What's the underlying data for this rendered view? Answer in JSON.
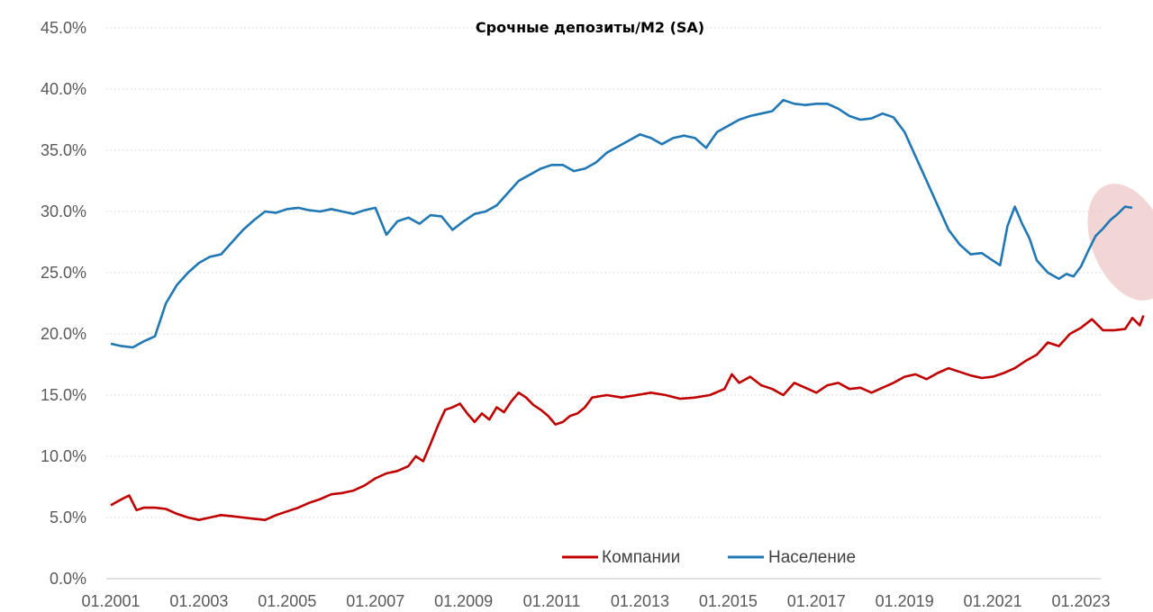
{
  "chart_data": {
    "type": "line",
    "title": "Срочные депозиты/M2 (SA)",
    "xlabel": "",
    "ylabel": "",
    "ylim": [
      0,
      45
    ],
    "y_tick_labels": [
      "0.0%",
      "5.0%",
      "10.0%",
      "15.0%",
      "20.0%",
      "25.0%",
      "30.0%",
      "35.0%",
      "40.0%",
      "45.0%"
    ],
    "x_tick_labels": [
      "01.2001",
      "01.2003",
      "01.2005",
      "01.2007",
      "01.2009",
      "01.2011",
      "01.2013",
      "01.2015",
      "01.2017",
      "01.2019",
      "01.2021",
      "01.2023"
    ],
    "x_range": [
      "2001-01",
      "2024-06"
    ],
    "grid": "horizontal dotted",
    "legend_position": "bottom",
    "highlight": {
      "shape": "ellipse",
      "x_range": [
        "2023-04",
        "2024-12"
      ],
      "y_range": [
        22.5,
        32.5
      ],
      "color": "#e8b4b4"
    },
    "series": [
      {
        "name": "Компании",
        "color": "#c00000",
        "points": [
          [
            "2001-01",
            6.0
          ],
          [
            "2001-04",
            6.5
          ],
          [
            "2001-06",
            6.8
          ],
          [
            "2001-08",
            5.6
          ],
          [
            "2001-10",
            5.8
          ],
          [
            "2002-01",
            5.8
          ],
          [
            "2002-04",
            5.7
          ],
          [
            "2002-07",
            5.3
          ],
          [
            "2002-10",
            5.0
          ],
          [
            "2003-01",
            4.8
          ],
          [
            "2003-04",
            5.0
          ],
          [
            "2003-07",
            5.2
          ],
          [
            "2003-10",
            5.1
          ],
          [
            "2004-01",
            5.0
          ],
          [
            "2004-04",
            4.9
          ],
          [
            "2004-07",
            4.8
          ],
          [
            "2004-10",
            5.2
          ],
          [
            "2005-01",
            5.5
          ],
          [
            "2005-04",
            5.8
          ],
          [
            "2005-07",
            6.2
          ],
          [
            "2005-10",
            6.5
          ],
          [
            "2006-01",
            6.9
          ],
          [
            "2006-04",
            7.0
          ],
          [
            "2006-07",
            7.2
          ],
          [
            "2006-10",
            7.6
          ],
          [
            "2007-01",
            8.2
          ],
          [
            "2007-04",
            8.6
          ],
          [
            "2007-07",
            8.8
          ],
          [
            "2007-10",
            9.2
          ],
          [
            "2007-12",
            10.0
          ],
          [
            "2008-02",
            9.6
          ],
          [
            "2008-04",
            11.0
          ],
          [
            "2008-06",
            12.5
          ],
          [
            "2008-08",
            13.8
          ],
          [
            "2008-10",
            14.0
          ],
          [
            "2008-12",
            14.3
          ],
          [
            "2009-02",
            13.5
          ],
          [
            "2009-04",
            12.8
          ],
          [
            "2009-06",
            13.5
          ],
          [
            "2009-08",
            13.0
          ],
          [
            "2009-10",
            14.0
          ],
          [
            "2009-12",
            13.6
          ],
          [
            "2010-02",
            14.5
          ],
          [
            "2010-04",
            15.2
          ],
          [
            "2010-06",
            14.8
          ],
          [
            "2010-08",
            14.2
          ],
          [
            "2010-10",
            13.8
          ],
          [
            "2010-12",
            13.3
          ],
          [
            "2011-02",
            12.6
          ],
          [
            "2011-04",
            12.8
          ],
          [
            "2011-06",
            13.3
          ],
          [
            "2011-08",
            13.5
          ],
          [
            "2011-10",
            14.0
          ],
          [
            "2011-12",
            14.8
          ],
          [
            "2012-04",
            15.0
          ],
          [
            "2012-08",
            14.8
          ],
          [
            "2012-12",
            15.0
          ],
          [
            "2013-04",
            15.2
          ],
          [
            "2013-08",
            15.0
          ],
          [
            "2013-12",
            14.7
          ],
          [
            "2014-04",
            14.8
          ],
          [
            "2014-08",
            15.0
          ],
          [
            "2014-12",
            15.5
          ],
          [
            "2015-02",
            16.7
          ],
          [
            "2015-04",
            16.0
          ],
          [
            "2015-07",
            16.5
          ],
          [
            "2015-10",
            15.8
          ],
          [
            "2016-01",
            15.5
          ],
          [
            "2016-04",
            15.0
          ],
          [
            "2016-07",
            16.0
          ],
          [
            "2016-10",
            15.6
          ],
          [
            "2017-01",
            15.2
          ],
          [
            "2017-04",
            15.8
          ],
          [
            "2017-07",
            16.0
          ],
          [
            "2017-10",
            15.5
          ],
          [
            "2018-01",
            15.6
          ],
          [
            "2018-04",
            15.2
          ],
          [
            "2018-07",
            15.6
          ],
          [
            "2018-10",
            16.0
          ],
          [
            "2019-01",
            16.5
          ],
          [
            "2019-04",
            16.7
          ],
          [
            "2019-07",
            16.3
          ],
          [
            "2019-10",
            16.8
          ],
          [
            "2020-01",
            17.2
          ],
          [
            "2020-04",
            16.9
          ],
          [
            "2020-07",
            16.6
          ],
          [
            "2020-10",
            16.4
          ],
          [
            "2021-01",
            16.5
          ],
          [
            "2021-04",
            16.8
          ],
          [
            "2021-07",
            17.2
          ],
          [
            "2021-10",
            17.8
          ],
          [
            "2022-01",
            18.3
          ],
          [
            "2022-04",
            19.3
          ],
          [
            "2022-07",
            19.0
          ],
          [
            "2022-10",
            20.0
          ],
          [
            "2023-01",
            20.5
          ],
          [
            "2023-04",
            21.2
          ],
          [
            "2023-07",
            20.3
          ],
          [
            "2023-10",
            20.3
          ],
          [
            "2024-01",
            20.4
          ],
          [
            "2024-03",
            21.3
          ],
          [
            "2024-05",
            20.7
          ],
          [
            "2024-06",
            21.5
          ]
        ]
      },
      {
        "name": "Население",
        "color": "#1f77b4",
        "points": [
          [
            "2001-01",
            19.2
          ],
          [
            "2001-04",
            19.0
          ],
          [
            "2001-07",
            18.9
          ],
          [
            "2001-10",
            19.4
          ],
          [
            "2002-01",
            19.8
          ],
          [
            "2002-04",
            22.5
          ],
          [
            "2002-07",
            24.0
          ],
          [
            "2002-10",
            25.0
          ],
          [
            "2003-01",
            25.8
          ],
          [
            "2003-04",
            26.3
          ],
          [
            "2003-07",
            26.5
          ],
          [
            "2003-10",
            27.5
          ],
          [
            "2004-01",
            28.5
          ],
          [
            "2004-04",
            29.3
          ],
          [
            "2004-07",
            30.0
          ],
          [
            "2004-10",
            29.9
          ],
          [
            "2005-01",
            30.2
          ],
          [
            "2005-04",
            30.3
          ],
          [
            "2005-07",
            30.1
          ],
          [
            "2005-10",
            30.0
          ],
          [
            "2006-01",
            30.2
          ],
          [
            "2006-04",
            30.0
          ],
          [
            "2006-07",
            29.8
          ],
          [
            "2006-10",
            30.1
          ],
          [
            "2007-01",
            30.3
          ],
          [
            "2007-04",
            28.1
          ],
          [
            "2007-07",
            29.2
          ],
          [
            "2007-10",
            29.5
          ],
          [
            "2008-01",
            29.0
          ],
          [
            "2008-04",
            29.7
          ],
          [
            "2008-07",
            29.6
          ],
          [
            "2008-10",
            28.5
          ],
          [
            "2009-01",
            29.2
          ],
          [
            "2009-04",
            29.8
          ],
          [
            "2009-07",
            30.0
          ],
          [
            "2009-10",
            30.5
          ],
          [
            "2010-01",
            31.5
          ],
          [
            "2010-04",
            32.5
          ],
          [
            "2010-07",
            33.0
          ],
          [
            "2010-10",
            33.5
          ],
          [
            "2011-01",
            33.8
          ],
          [
            "2011-04",
            33.8
          ],
          [
            "2011-07",
            33.3
          ],
          [
            "2011-10",
            33.5
          ],
          [
            "2012-01",
            34.0
          ],
          [
            "2012-04",
            34.8
          ],
          [
            "2012-07",
            35.3
          ],
          [
            "2012-10",
            35.8
          ],
          [
            "2013-01",
            36.3
          ],
          [
            "2013-04",
            36.0
          ],
          [
            "2013-07",
            35.5
          ],
          [
            "2013-10",
            36.0
          ],
          [
            "2014-01",
            36.2
          ],
          [
            "2014-04",
            36.0
          ],
          [
            "2014-07",
            35.2
          ],
          [
            "2014-10",
            36.5
          ],
          [
            "2015-01",
            37.0
          ],
          [
            "2015-04",
            37.5
          ],
          [
            "2015-07",
            37.8
          ],
          [
            "2015-10",
            38.0
          ],
          [
            "2016-01",
            38.2
          ],
          [
            "2016-04",
            39.1
          ],
          [
            "2016-07",
            38.8
          ],
          [
            "2016-10",
            38.7
          ],
          [
            "2017-01",
            38.8
          ],
          [
            "2017-04",
            38.8
          ],
          [
            "2017-07",
            38.4
          ],
          [
            "2017-10",
            37.8
          ],
          [
            "2018-01",
            37.5
          ],
          [
            "2018-04",
            37.6
          ],
          [
            "2018-07",
            38.0
          ],
          [
            "2018-10",
            37.7
          ],
          [
            "2019-01",
            36.5
          ],
          [
            "2019-04",
            34.5
          ],
          [
            "2019-07",
            32.5
          ],
          [
            "2019-10",
            30.5
          ],
          [
            "2020-01",
            28.5
          ],
          [
            "2020-04",
            27.3
          ],
          [
            "2020-07",
            26.5
          ],
          [
            "2020-10",
            26.6
          ],
          [
            "2021-01",
            26.0
          ],
          [
            "2021-03",
            25.6
          ],
          [
            "2021-05",
            28.8
          ],
          [
            "2021-07",
            30.4
          ],
          [
            "2021-09",
            29.0
          ],
          [
            "2021-11",
            27.8
          ],
          [
            "2022-01",
            26.0
          ],
          [
            "2022-04",
            25.0
          ],
          [
            "2022-07",
            24.5
          ],
          [
            "2022-09",
            24.9
          ],
          [
            "2022-11",
            24.7
          ],
          [
            "2023-01",
            25.5
          ],
          [
            "2023-03",
            26.8
          ],
          [
            "2023-05",
            28.0
          ],
          [
            "2023-07",
            28.6
          ],
          [
            "2023-09",
            29.3
          ],
          [
            "2023-11",
            29.8
          ],
          [
            "2024-01",
            30.4
          ],
          [
            "2024-03",
            30.3
          ]
        ]
      }
    ]
  }
}
